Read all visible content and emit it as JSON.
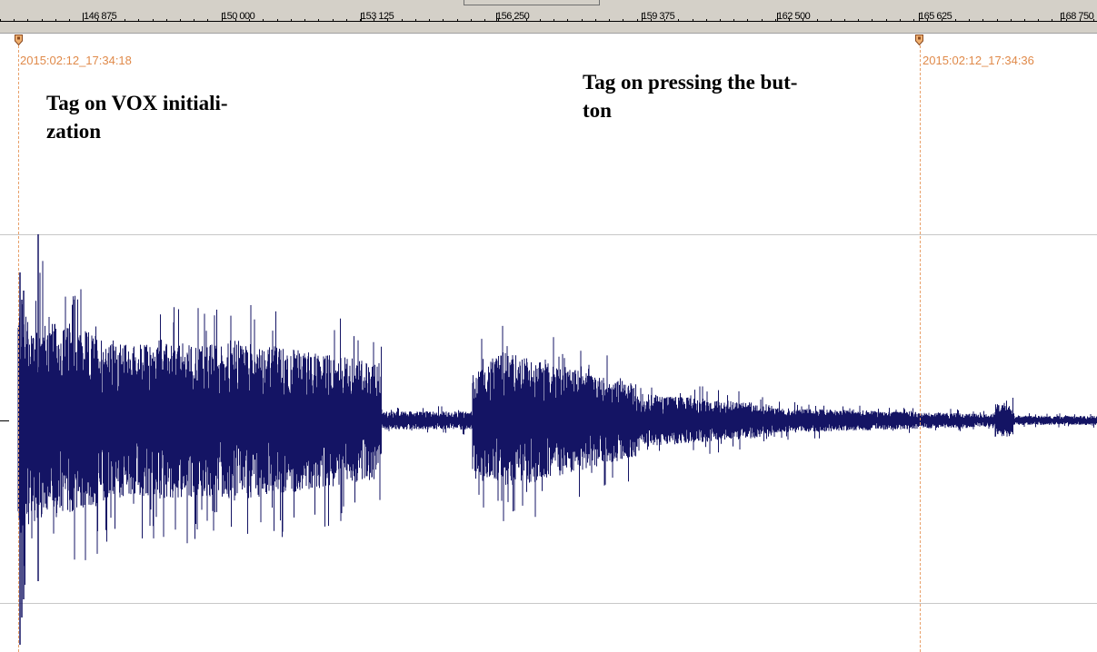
{
  "ruler": {
    "labels": [
      "146 875",
      "150 000",
      "153 125",
      "156 250",
      "159 375",
      "162 500",
      "165 625",
      "168 750"
    ]
  },
  "tags": [
    {
      "time": "2015:02:12_17:34:18"
    },
    {
      "time": "2015:02:12_17:34:36"
    }
  ],
  "annotations": {
    "vox_tag_text": "Tag on VOX initiali- zation",
    "vox_tag_line1": "Tag on VOX initiali-",
    "vox_tag_line2": "zation",
    "button_tag_line1": "Tag on pressing the but-",
    "button_tag_line2": "ton"
  },
  "colors": {
    "waveform": "#141464",
    "tag_marker": "#e8a06a",
    "ruler_bg": "#d4d0c8"
  }
}
